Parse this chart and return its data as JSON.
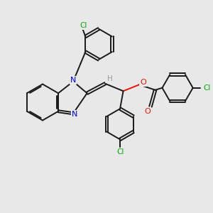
{
  "bg_color": "#e8e8e8",
  "bond_color": "#1a1a1a",
  "N_color": "#0000ee",
  "O_color": "#ee1100",
  "Cl_color": "#00aa00",
  "H_color": "#999999",
  "line_width": 1.4,
  "figsize": [
    3.0,
    3.0
  ],
  "dpi": 100,
  "xlim": [
    0,
    10
  ],
  "ylim": [
    0,
    10
  ]
}
